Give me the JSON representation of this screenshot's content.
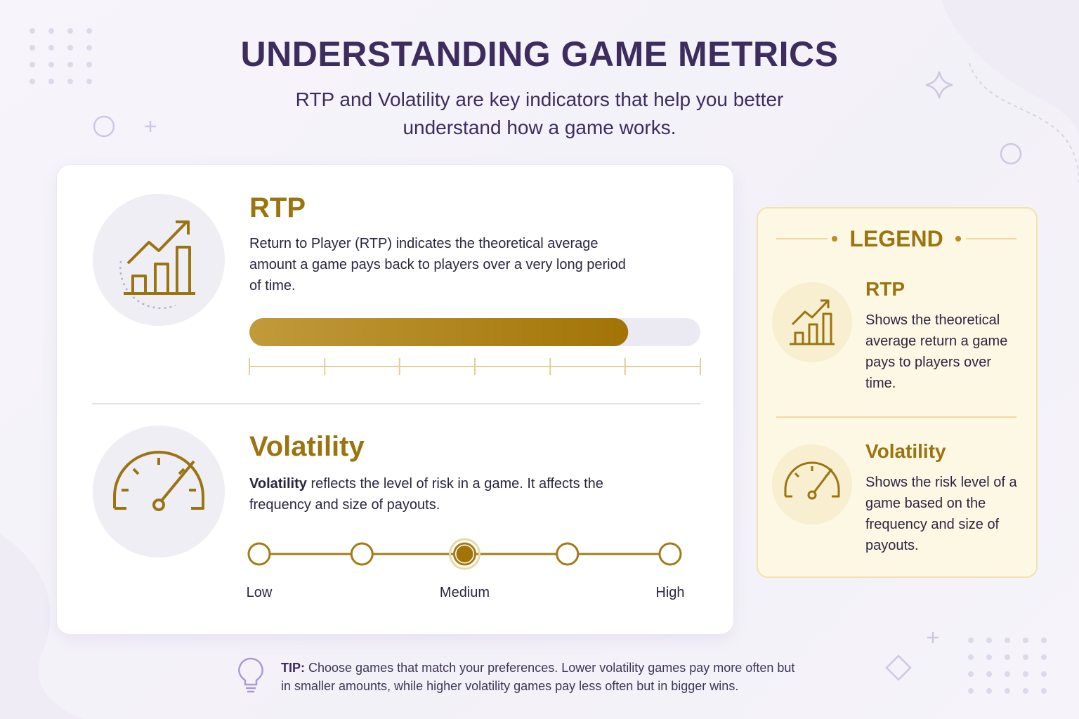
{
  "header": {
    "title": "UNDERSTANDING GAME METRICS",
    "subtitle": "RTP and Volatility are key indicators that help you better understand how a game works."
  },
  "rtp": {
    "title": "RTP",
    "description": "Return to Player (RTP) indicates the theoretical average amount a game pays back to players over a very long period of time.",
    "bar": {
      "value": 84,
      "range": [
        0,
        100
      ],
      "ticks": [
        0,
        16.7,
        33.3,
        50,
        66.7,
        83.3,
        100
      ]
    }
  },
  "volatility": {
    "title": "Volatility",
    "description_lead": "Volatility",
    "description": "reflects the level of risk in a game. It affects the frequency and size of payouts.",
    "steps": [
      "Low",
      null,
      "Medium",
      null,
      "High"
    ],
    "selected": 2
  },
  "legend": {
    "title": "LEGEND",
    "items": [
      {
        "title": "RTP",
        "description": "Shows the theoretical average return a game pays to players over time."
      },
      {
        "title": "Volatility",
        "description": "Shows the risk level of a game based on the frequency and size of payouts."
      }
    ]
  },
  "tip": {
    "label": "TIP:",
    "text": "Choose games that match your preferences. Lower volatility games pay more often but in smaller amounts, while higher volatility games pay less often but in bigger wins."
  }
}
